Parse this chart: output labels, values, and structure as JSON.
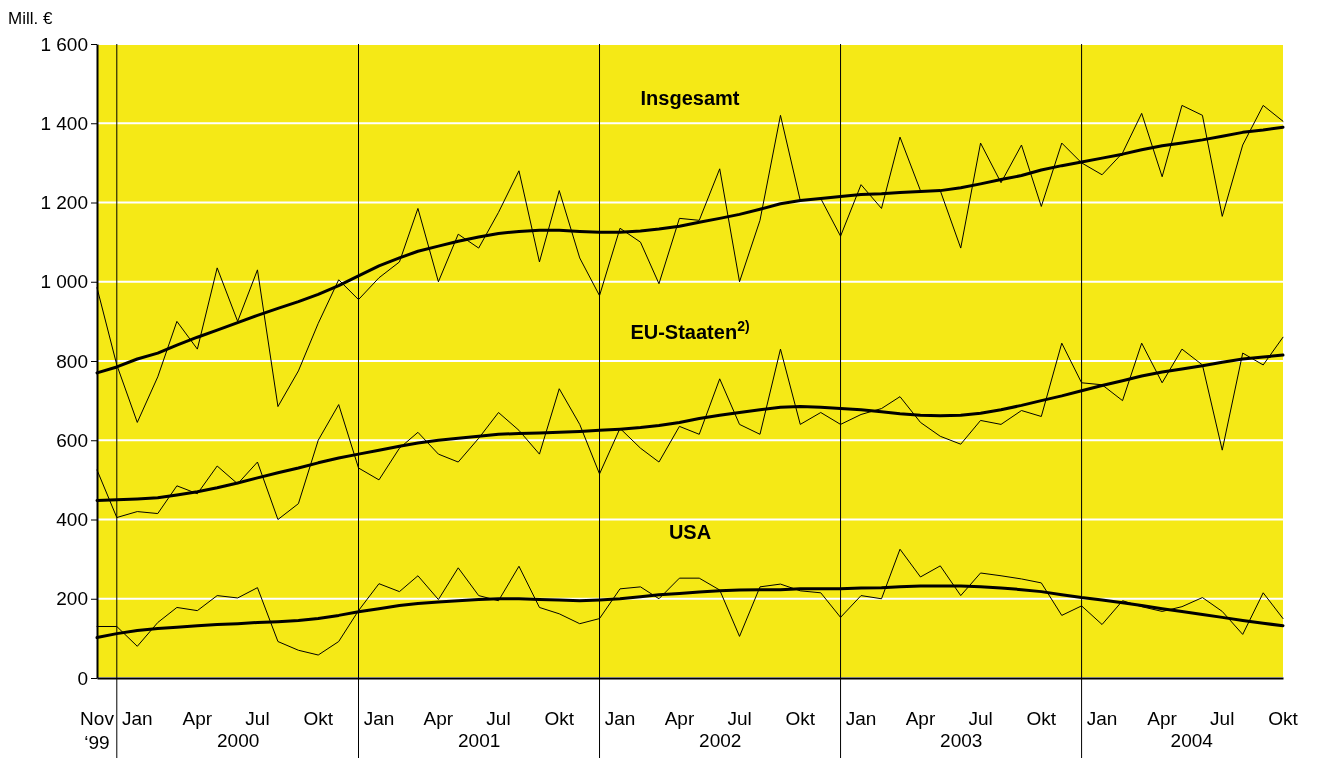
{
  "chart_data": {
    "type": "line",
    "ylabel": "Mill. €",
    "xlim": [
      "1999-11",
      "2004-10"
    ],
    "ylim": [
      0,
      1600
    ],
    "yticks": [
      0,
      {
        "value": 200,
        "label": "200"
      },
      {
        "value": 400,
        "label": "400"
      },
      {
        "value": 600,
        "label": "600"
      },
      {
        "value": 800,
        "label": "800"
      },
      {
        "value": 1000,
        "label": "1 000"
      },
      {
        "value": 1200,
        "label": "1 200"
      },
      {
        "value": 1400,
        "label": "1 400"
      },
      {
        "value": 1600,
        "label": "1 600"
      }
    ],
    "xticks": [
      {
        "value": "1999-11",
        "label": "Nov\n‘99"
      },
      {
        "value": "2000-01",
        "label": "Jan"
      },
      {
        "value": "2000-04",
        "label": "Apr"
      },
      {
        "value": "2000-07",
        "label": "Jul"
      },
      {
        "value": "2000-10",
        "label": "Okt"
      },
      {
        "value": "2001-01",
        "label": "Jan"
      },
      {
        "value": "2001-04",
        "label": "Apr"
      },
      {
        "value": "2001-07",
        "label": "Jul"
      },
      {
        "value": "2001-10",
        "label": "Okt"
      },
      {
        "value": "2002-01",
        "label": "Jan"
      },
      {
        "value": "2002-04",
        "label": "Apr"
      },
      {
        "value": "2002-07",
        "label": "Jul"
      },
      {
        "value": "2002-10",
        "label": "Okt"
      },
      {
        "value": "2003-01",
        "label": "Jan"
      },
      {
        "value": "2003-04",
        "label": "Apr"
      },
      {
        "value": "2003-07",
        "label": "Jul"
      },
      {
        "value": "2003-10",
        "label": "Okt"
      },
      {
        "value": "2004-01",
        "label": "Jan"
      },
      {
        "value": "2004-04",
        "label": "Apr"
      },
      {
        "value": "2004-07",
        "label": "Jul"
      },
      {
        "value": "2004-10",
        "label": "Okt"
      }
    ],
    "x2lim": [
      "1999-11",
      "2004-10"
    ],
    "x2ticks": [
      {
        "value": "2000-06",
        "label": "2000"
      },
      {
        "value": "2001-06",
        "label": "2001"
      },
      {
        "value": "2002-06",
        "label": "2002"
      },
      {
        "value": "2003-06",
        "label": "2003"
      },
      {
        "value": "2004-05-15",
        "label": "2004"
      }
    ],
    "grid": "y",
    "marker": "none",
    "line_style": "solid",
    "ref_lines": [
      {
        "axis": "x",
        "value": "1999-12",
        "color": "#000000"
      },
      {
        "axis": "x",
        "value": "2000-12",
        "color": "#000000"
      },
      {
        "axis": "x",
        "value": "2001-12",
        "color": "#000000"
      },
      {
        "axis": "x",
        "value": "2002-12",
        "color": "#000000"
      },
      {
        "axis": "x",
        "value": "2003-12",
        "color": "#000000"
      }
    ],
    "x": [
      "1999-11",
      "1999-12",
      "2000-01",
      "2000-02",
      "2000-03",
      "2000-04",
      "2000-05",
      "2000-06",
      "2000-07",
      "2000-08",
      "2000-09",
      "2000-10",
      "2000-11",
      "2000-12",
      "2001-01",
      "2001-02",
      "2001-03",
      "2001-04",
      "2001-05",
      "2001-06",
      "2001-07",
      "2001-08",
      "2001-09",
      "2001-10",
      "2001-11",
      "2001-12",
      "2002-01",
      "2002-02",
      "2002-03",
      "2002-04",
      "2002-05",
      "2002-06",
      "2002-07",
      "2002-08",
      "2002-09",
      "2002-10",
      "2002-11",
      "2002-12",
      "2003-01",
      "2003-02",
      "2003-03",
      "2003-04",
      "2003-05",
      "2003-06",
      "2003-07",
      "2003-08",
      "2003-09",
      "2003-10",
      "2003-11",
      "2003-12",
      "2004-01",
      "2004-02",
      "2004-03",
      "2004-04",
      "2004-05",
      "2004-06",
      "2004-07",
      "2004-08",
      "2004-09",
      "2004-10"
    ],
    "series": [
      {
        "name": "Insgesamt",
        "color": "#000000",
        "values": [
          985,
          790,
          645,
          760,
          900,
          830,
          1035,
          900,
          1030,
          685,
          775,
          895,
          1005,
          955,
          1010,
          1050,
          1185,
          1000,
          1120,
          1085,
          1175,
          1280,
          1050,
          1230,
          1060,
          965,
          1135,
          1100,
          995,
          1160,
          1155,
          1285,
          1000,
          1155,
          1420,
          1205,
          1210,
          1115,
          1245,
          1185,
          1365,
          1230,
          1230,
          1085,
          1350,
          1250,
          1345,
          1190,
          1350,
          1300,
          1270,
          1325,
          1425,
          1265,
          1445,
          1420,
          1165,
          1345,
          1445,
          1405
        ]
      },
      {
        "color": "#000000",
        "values": [
          770,
          785,
          805,
          820,
          840,
          860,
          878,
          897,
          915,
          933,
          950,
          968,
          990,
          1015,
          1040,
          1060,
          1077,
          1090,
          1102,
          1113,
          1122,
          1127,
          1130,
          1130,
          1127,
          1125,
          1125,
          1128,
          1133,
          1140,
          1150,
          1160,
          1170,
          1183,
          1197,
          1205,
          1210,
          1215,
          1220,
          1222,
          1225,
          1228,
          1230,
          1237,
          1247,
          1258,
          1268,
          1282,
          1293,
          1302,
          1312,
          1322,
          1333,
          1343,
          1350,
          1358,
          1367,
          1377,
          1383,
          1390
        ]
      },
      {
        "name": "EU-Staaten$^{2)}$",
        "color": "#000000",
        "values": [
          525,
          405,
          420,
          415,
          485,
          465,
          535,
          490,
          545,
          400,
          440,
          600,
          690,
          530,
          500,
          580,
          620,
          565,
          545,
          605,
          670,
          625,
          565,
          730,
          640,
          515,
          630,
          580,
          545,
          635,
          615,
          755,
          640,
          615,
          830,
          640,
          670,
          640,
          665,
          680,
          710,
          645,
          610,
          590,
          650,
          640,
          675,
          660,
          845,
          745,
          740,
          700,
          845,
          745,
          830,
          790,
          575,
          820,
          790,
          860
        ]
      },
      {
        "color": "#000000",
        "values": [
          448,
          450,
          452,
          455,
          462,
          470,
          480,
          492,
          505,
          518,
          530,
          543,
          555,
          565,
          575,
          585,
          593,
          600,
          605,
          610,
          615,
          617,
          618,
          620,
          622,
          625,
          628,
          632,
          637,
          645,
          655,
          663,
          670,
          677,
          683,
          685,
          683,
          680,
          677,
          672,
          667,
          663,
          662,
          663,
          668,
          677,
          688,
          700,
          712,
          725,
          738,
          750,
          762,
          772,
          780,
          788,
          797,
          805,
          810,
          815
        ]
      },
      {
        "name": "USA",
        "color": "#000000",
        "values": [
          130,
          130,
          80,
          140,
          178,
          170,
          208,
          202,
          228,
          92,
          70,
          58,
          92,
          170,
          238,
          218,
          258,
          198,
          278,
          208,
          195,
          282,
          178,
          162,
          137,
          150,
          225,
          230,
          200,
          252,
          252,
          222,
          105,
          230,
          237,
          220,
          215,
          153,
          208,
          200,
          325,
          255,
          283,
          208,
          265,
          258,
          250,
          240,
          158,
          182,
          135,
          195,
          180,
          168,
          180,
          203,
          168,
          110,
          215,
          150
        ]
      },
      {
        "color": "#000000",
        "values": [
          102,
          112,
          120,
          125,
          128,
          132,
          135,
          137,
          140,
          142,
          145,
          150,
          158,
          167,
          175,
          183,
          188,
          192,
          195,
          198,
          200,
          200,
          198,
          197,
          195,
          197,
          200,
          205,
          210,
          213,
          217,
          220,
          222,
          223,
          223,
          225,
          225,
          225,
          227,
          228,
          230,
          232,
          232,
          232,
          230,
          227,
          223,
          218,
          210,
          203,
          197,
          190,
          183,
          175,
          168,
          160,
          153,
          145,
          138,
          132
        ]
      }
    ]
  }
}
